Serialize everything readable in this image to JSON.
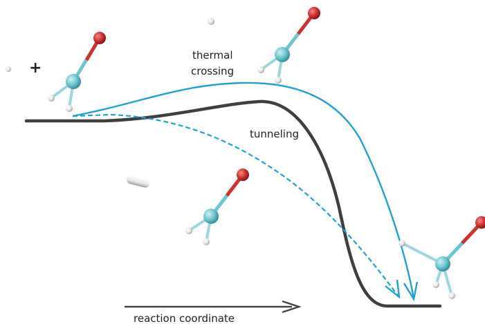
{
  "labels": {
    "thermal_line1": "thermal",
    "thermal_line2": "crossing",
    "tunneling": "tunneling",
    "axis": "reaction coordinate",
    "plus": "+"
  },
  "colors": {
    "energy_curve": "#3f3f3f",
    "paths": "#1ba3d6",
    "carbon": "#6cc6cf",
    "oxygen": "#d0302e",
    "hydrogen": "#f2f2f2",
    "arrow": "#444444"
  },
  "molecules": [
    {
      "name": "reactant-formaldehyde"
    },
    {
      "name": "transition-formaldehyde"
    },
    {
      "name": "mid-formaldehyde"
    },
    {
      "name": "product-formaldehyde"
    }
  ]
}
